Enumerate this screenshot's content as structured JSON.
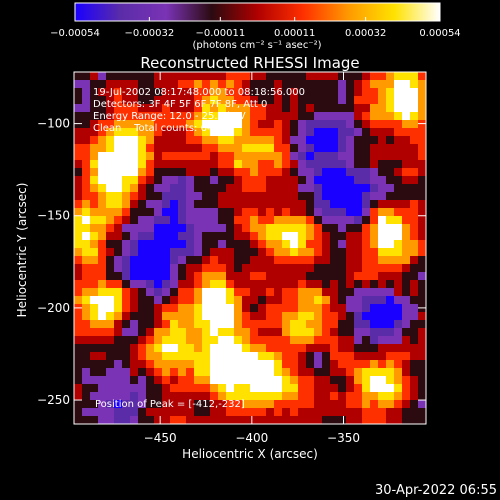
{
  "chart_data": {
    "type": "heatmap",
    "title": "Reconstructed RHESSI Image",
    "xlabel": "Heliocentric X (arcsec)",
    "ylabel": "Heliocentric Y (arcsec)",
    "xlim": [
      -497,
      -305
    ],
    "ylim": [
      -263,
      -72
    ],
    "x_ticks": [
      -450,
      -400,
      -350
    ],
    "x_tick_labels": [
      "−450",
      "−400",
      "−350"
    ],
    "y_ticks": [
      -100,
      -150,
      -200,
      -250
    ],
    "y_tick_labels": [
      "−100",
      "−150",
      "−200",
      "−250"
    ],
    "colorbar": {
      "min": -0.00054,
      "max": 0.00054,
      "ticks": [
        -0.00054,
        -0.00032,
        -0.00011,
        0.00011,
        0.00032,
        0.00054
      ],
      "tick_labels": [
        "−0.00054",
        "−0.00032",
        "−0.00011",
        "0.00011",
        "0.00032",
        "0.00054"
      ],
      "units_label": "(photons cm⁻² s⁻¹ asec⁻²)",
      "colormap": [
        "#1a00ff",
        "#5b2ca8",
        "#7a33b5",
        "#2b0a10",
        "#b00000",
        "#ff3000",
        "#ff9a00",
        "#ffe200",
        "#ffffff"
      ]
    },
    "annotations": [
      "19-Jul-2002 08:17:48.000 to 08:18:56.000",
      "Detectors: 3F 4F 5F 6F 7F 8F, Att 0",
      "Energy Range: 12.0 - 25.0 keV",
      "Clean    Total counts: 647."
    ],
    "peak_label": "Position of Peak = [-412,-232]",
    "peak_position": [
      -412,
      -232
    ],
    "bright_regions": [
      {
        "x": -472,
        "y": -128,
        "level": 0.85
      },
      {
        "x": -470,
        "y": -110,
        "level": 0.7
      },
      {
        "x": -420,
        "y": -95,
        "level": 0.7
      },
      {
        "x": -398,
        "y": -118,
        "level": 0.6
      },
      {
        "x": -315,
        "y": -87,
        "level": 0.95
      },
      {
        "x": -325,
        "y": -160,
        "level": 0.8
      },
      {
        "x": -478,
        "y": -200,
        "level": 0.85
      },
      {
        "x": -445,
        "y": -222,
        "level": 0.8
      },
      {
        "x": -420,
        "y": -200,
        "level": 0.9
      },
      {
        "x": -412,
        "y": -232,
        "level": 1.0
      },
      {
        "x": -380,
        "y": -160,
        "level": 0.6
      },
      {
        "x": -390,
        "y": -240,
        "level": 0.75
      },
      {
        "x": -335,
        "y": -240,
        "level": 0.7
      },
      {
        "x": -490,
        "y": -160,
        "level": 0.65
      },
      {
        "x": -370,
        "y": -205,
        "level": 0.55
      }
    ],
    "dim_regions": [
      {
        "x": -350,
        "y": -140,
        "level": -0.9
      },
      {
        "x": -455,
        "y": -175,
        "level": -0.7
      },
      {
        "x": -440,
        "y": -150,
        "level": -0.6
      },
      {
        "x": -360,
        "y": -110,
        "level": -0.7
      },
      {
        "x": -330,
        "y": -205,
        "level": -0.6
      },
      {
        "x": -470,
        "y": -250,
        "level": -0.5
      },
      {
        "x": -465,
        "y": -213,
        "level": -0.5
      }
    ]
  },
  "footer": {
    "date": "30-Apr-2022 06:55"
  }
}
